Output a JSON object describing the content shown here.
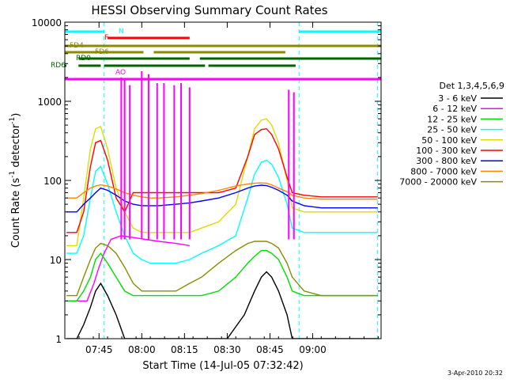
{
  "chart_data": {
    "type": "line",
    "title": "HESSI Observing Summary Count Rates",
    "xlabel": "Start Time (14-Jul-05 07:32:42)",
    "ylabel": "Count Rate (s^-1 detector^-1)",
    "ylabel_main": "Count Rate (s",
    "ylabel_sup1": "-1",
    "ylabel_mid": " detector",
    "ylabel_sup2": "-1",
    "ylabel_end": ")",
    "yscale": "log",
    "ylim": [
      1,
      10000
    ],
    "xlim_minutes": [
      7.55,
      9.4
    ],
    "x_ticks": [
      {
        "t": 7.75,
        "label": "07:45"
      },
      {
        "t": 8.0,
        "label": "08:00"
      },
      {
        "t": 8.25,
        "label": "08:15"
      },
      {
        "t": 8.5,
        "label": "08:30"
      },
      {
        "t": 8.75,
        "label": "08:45"
      },
      {
        "t": 9.0,
        "label": "09:00"
      }
    ],
    "y_ticks": [
      {
        "v": 1,
        "label": "1"
      },
      {
        "v": 10,
        "label": "10"
      },
      {
        "v": 100,
        "label": "100"
      },
      {
        "v": 1000,
        "label": "1000"
      },
      {
        "v": 10000,
        "label": "10000"
      }
    ],
    "legend_title": "Det 1,3,4,5,6,9",
    "legend_position": "right",
    "footer": "3-Apr-2010 20:32",
    "series": [
      {
        "name": "3 - 6 keV",
        "color": "#000000",
        "x": [
          7.56,
          7.62,
          7.66,
          7.7,
          7.73,
          7.76,
          7.8,
          7.85,
          7.9,
          7.95,
          7.98,
          8.02,
          8.1,
          8.2,
          8.28,
          8.3,
          8.4,
          8.5,
          8.6,
          8.66,
          8.7,
          8.73,
          8.76,
          8.8,
          8.85,
          8.88,
          8.95,
          9.05,
          9.15,
          9.25,
          9.35,
          9.38
        ],
        "y": [
          1,
          1,
          1.5,
          2.5,
          4,
          5,
          3.5,
          2,
          1,
          1,
          1,
          1,
          1,
          1,
          1,
          1,
          1,
          1,
          2,
          4,
          6,
          7,
          6,
          4,
          2,
          1,
          1,
          1,
          1,
          1,
          1,
          1
        ]
      },
      {
        "name": "6 - 12 keV",
        "color": "#ff00ff",
        "x": [
          7.56,
          7.62,
          7.68,
          7.72,
          7.75,
          7.78,
          7.82,
          7.88,
          7.95,
          8.02,
          8.1,
          8.2,
          8.28
        ],
        "y": [
          3,
          3,
          3,
          5,
          8,
          12,
          18,
          20,
          19,
          18,
          17,
          16,
          15
        ]
      },
      {
        "name": "12 - 25 keV",
        "color": "#00dd00",
        "x": [
          7.56,
          7.62,
          7.66,
          7.7,
          7.73,
          7.76,
          7.8,
          7.85,
          7.9,
          7.95,
          8.0,
          8.05,
          8.1,
          8.2,
          8.28,
          8.35,
          8.45,
          8.55,
          8.62,
          8.66,
          8.7,
          8.73,
          8.76,
          8.8,
          8.85,
          8.88,
          8.95,
          9.05,
          9.15,
          9.25,
          9.35,
          9.38
        ],
        "y": [
          3,
          3,
          4,
          6,
          10,
          12,
          9,
          6,
          4,
          3.5,
          3.5,
          3.5,
          3.5,
          3.5,
          3.5,
          3.5,
          4,
          6,
          9,
          11,
          13,
          13,
          12,
          10,
          6,
          4,
          3.5,
          3.5,
          3.5,
          3.5,
          3.5,
          3.5
        ]
      },
      {
        "name": "25 - 50 keV",
        "color": "#00ffff",
        "x": [
          7.56,
          7.62,
          7.66,
          7.7,
          7.73,
          7.76,
          7.8,
          7.85,
          7.9,
          7.95,
          8.0,
          8.05,
          8.1,
          8.2,
          8.28,
          8.35,
          8.45,
          8.55,
          8.62,
          8.66,
          8.7,
          8.73,
          8.76,
          8.8,
          8.85,
          8.88,
          8.95,
          9.05,
          9.15,
          9.25,
          9.35,
          9.38
        ],
        "y": [
          12,
          12,
          20,
          60,
          130,
          150,
          90,
          40,
          20,
          12,
          10,
          9,
          9,
          9,
          10,
          12,
          15,
          20,
          60,
          120,
          170,
          180,
          160,
          110,
          50,
          25,
          22,
          22,
          22,
          22,
          22,
          22
        ]
      },
      {
        "name": "50 - 100 keV",
        "color": "#dddd00",
        "x": [
          7.56,
          7.62,
          7.66,
          7.7,
          7.73,
          7.76,
          7.8,
          7.85,
          7.9,
          7.95,
          8.0,
          8.05,
          8.1,
          8.2,
          8.28,
          8.35,
          8.45,
          8.55,
          8.62,
          8.66,
          8.7,
          8.73,
          8.76,
          8.8,
          8.85,
          8.88,
          8.95,
          9.05,
          9.15,
          9.25,
          9.35,
          9.38
        ],
        "y": [
          15,
          15,
          60,
          250,
          450,
          480,
          250,
          80,
          40,
          25,
          22,
          22,
          22,
          22,
          22,
          25,
          30,
          50,
          200,
          450,
          580,
          600,
          500,
          300,
          100,
          45,
          40,
          40,
          40,
          40,
          40,
          40
        ]
      },
      {
        "name": "100 - 300 keV",
        "color": "#ff0000",
        "x": [
          7.56,
          7.62,
          7.66,
          7.7,
          7.73,
          7.76,
          7.8,
          7.85,
          7.9,
          7.95,
          8.0,
          8.05,
          8.1,
          8.2,
          8.28,
          8.35,
          8.45,
          8.55,
          8.62,
          8.66,
          8.7,
          8.73,
          8.76,
          8.8,
          8.85,
          8.88,
          8.95,
          9.05,
          9.15,
          9.25,
          9.35,
          9.38
        ],
        "y": [
          22,
          22,
          40,
          150,
          300,
          320,
          180,
          60,
          40,
          70,
          70,
          70,
          70,
          70,
          70,
          70,
          70,
          80,
          200,
          380,
          440,
          450,
          380,
          250,
          110,
          70,
          65,
          62,
          62,
          62,
          62,
          62
        ]
      },
      {
        "name": "300 - 800 keV",
        "color": "#0000ff",
        "x": [
          7.56,
          7.62,
          7.66,
          7.7,
          7.73,
          7.76,
          7.8,
          7.85,
          7.9,
          7.95,
          8.0,
          8.05,
          8.1,
          8.2,
          8.28,
          8.35,
          8.45,
          8.55,
          8.62,
          8.66,
          8.7,
          8.73,
          8.76,
          8.8,
          8.85,
          8.88,
          8.95,
          9.05,
          9.15,
          9.25,
          9.35,
          9.38
        ],
        "y": [
          40,
          40,
          50,
          60,
          70,
          80,
          75,
          65,
          55,
          50,
          48,
          48,
          48,
          50,
          52,
          55,
          60,
          70,
          80,
          85,
          87,
          86,
          82,
          75,
          65,
          55,
          48,
          45,
          45,
          45,
          45,
          45
        ]
      },
      {
        "name": "800 - 7000 keV",
        "color": "#ff8800",
        "x": [
          7.56,
          7.62,
          7.66,
          7.7,
          7.73,
          7.76,
          7.8,
          7.85,
          7.9,
          7.95,
          8.0,
          8.05,
          8.1,
          8.2,
          8.28,
          8.35,
          8.45,
          8.55,
          8.62,
          8.66,
          8.7,
          8.73,
          8.76,
          8.8,
          8.85,
          8.88,
          8.95,
          9.05,
          9.15,
          9.25,
          9.35,
          9.38
        ],
        "y": [
          60,
          60,
          70,
          80,
          85,
          88,
          85,
          78,
          70,
          65,
          62,
          60,
          60,
          62,
          65,
          68,
          75,
          85,
          90,
          92,
          93,
          92,
          88,
          80,
          72,
          65,
          60,
          58,
          58,
          58,
          58,
          58
        ]
      },
      {
        "name": "7000 - 20000 keV",
        "color": "#8b8b00",
        "x": [
          7.56,
          7.62,
          7.66,
          7.7,
          7.73,
          7.76,
          7.8,
          7.85,
          7.9,
          7.95,
          8.0,
          8.05,
          8.1,
          8.2,
          8.28,
          8.35,
          8.45,
          8.55,
          8.62,
          8.66,
          8.7,
          8.73,
          8.76,
          8.8,
          8.85,
          8.88,
          8.95,
          9.05,
          9.15,
          9.25,
          9.35,
          9.38
        ],
        "y": [
          3.5,
          3.5,
          6,
          10,
          14,
          16,
          15,
          12,
          8,
          5,
          4,
          4,
          4,
          4,
          5,
          6,
          9,
          13,
          16,
          17,
          17,
          17,
          16,
          14,
          9,
          6,
          4,
          3.5,
          3.5,
          3.5,
          3.5,
          3.5
        ]
      }
    ],
    "spikes": [
      {
        "t": 7.88,
        "y": 2000
      },
      {
        "t": 7.9,
        "y": 1900
      },
      {
        "t": 7.93,
        "y": 1600
      },
      {
        "t": 8.0,
        "y": 2400
      },
      {
        "t": 8.04,
        "y": 2200
      },
      {
        "t": 8.09,
        "y": 1700
      },
      {
        "t": 8.13,
        "y": 1700
      },
      {
        "t": 8.19,
        "y": 1600
      },
      {
        "t": 8.23,
        "y": 1700
      },
      {
        "t": 8.28,
        "y": 1500
      },
      {
        "t": 8.86,
        "y": 1400
      },
      {
        "t": 8.89,
        "y": 1300
      }
    ],
    "flags": [
      {
        "label": "N",
        "color": "#00ffff",
        "segments": [
          [
            7.55,
            7.78
          ],
          [
            8.92,
            9.4
          ]
        ]
      },
      {
        "label": "F",
        "color": "#ff0000",
        "segments": [
          [
            7.8,
            8.28
          ]
        ]
      },
      {
        "label": "FD4",
        "color": "#8b8b00",
        "segments": [
          [
            7.55,
            9.4
          ]
        ]
      },
      {
        "label": "FD6",
        "color": "#8b8b00",
        "segments": [
          [
            7.55,
            8.01
          ],
          [
            8.07,
            8.84
          ]
        ]
      },
      {
        "label": "RD0",
        "color": "#006400",
        "segments": [
          [
            7.63,
            8.28
          ],
          [
            8.34,
            9.4
          ]
        ]
      },
      {
        "label": "RD6",
        "color": "#006400",
        "segments": [
          [
            7.55,
            7.55
          ],
          [
            7.63,
            7.76
          ],
          [
            7.78,
            8.37
          ],
          [
            8.39,
            8.9
          ]
        ]
      },
      {
        "label": "AO",
        "color": "#ff00ff",
        "segments": [
          [
            7.55,
            9.4
          ]
        ]
      }
    ],
    "eclipse_lines": [
      7.55,
      7.78,
      8.92,
      9.38
    ]
  }
}
